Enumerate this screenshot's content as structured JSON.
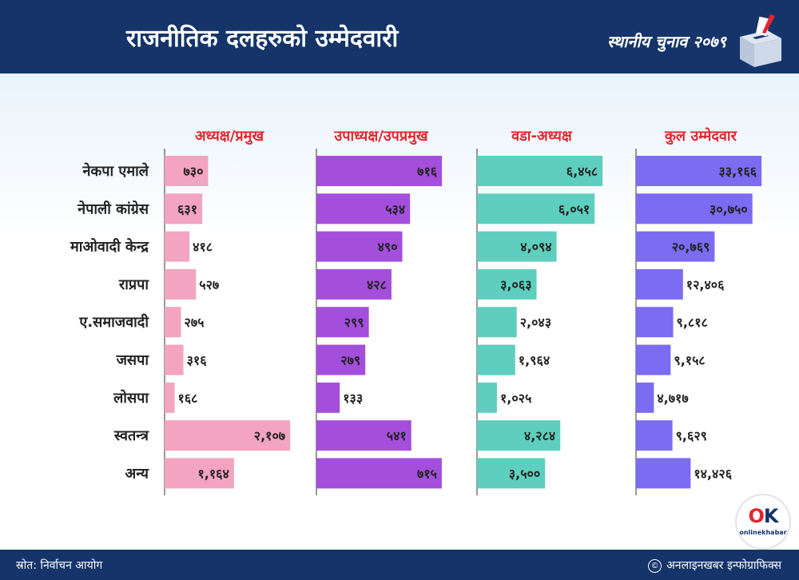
{
  "header": {
    "title": "राजनीतिक दलहरुको उम्मेदवारी",
    "brand": "स्थानीय चुनाव २०७९"
  },
  "footer": {
    "source": "स्रोत: निर्वाचन आयोग",
    "credit": "अनलाइनखबर इन्फोग्राफिक्स",
    "copyright_symbol": "©"
  },
  "logo": {
    "mark_o": "O",
    "mark_k": "K",
    "sub": "onlinekhabar"
  },
  "colors": {
    "header_bg": "#14346a",
    "chair": "#f3a4c0",
    "vice": "#a34fdc",
    "ward": "#5ecfbe",
    "total": "#7b6cf2",
    "heading": "#e3262e"
  },
  "chart_data": {
    "type": "bar",
    "orientation": "horizontal",
    "categories": [
      "नेकपा एमाले",
      "नेपाली कांग्रेस",
      "माओवादी केन्द्र",
      "राप्रपा",
      "ए.समाजवादी",
      "जसपा",
      "लोसपा",
      "स्वतन्त्र",
      "अन्य"
    ],
    "series": [
      {
        "name": "अध्यक्ष/प्रमुख",
        "color": "#f3a4c0",
        "values": [
          730,
          631,
          418,
          527,
          275,
          316,
          168,
          2107,
          1164
        ],
        "labels": [
          "७३०",
          "६३१",
          "४१८",
          "५२७",
          "२७५",
          "३१६",
          "१६८",
          "२,१०७",
          "१,१६४"
        ],
        "max": 2107
      },
      {
        "name": "उपाध्यक्ष/उपप्रमुख",
        "color": "#a34fdc",
        "values": [
          716,
          534,
          490,
          428,
          299,
          279,
          133,
          541,
          715
        ],
        "labels": [
          "७१६",
          "५३४",
          "४९०",
          "४२८",
          "२९९",
          "२७९",
          "१३३",
          "५४१",
          "७१५"
        ],
        "max": 716
      },
      {
        "name": "वडा-अध्यक्ष",
        "color": "#5ecfbe",
        "values": [
          6458,
          6051,
          4094,
          3063,
          2043,
          1964,
          1025,
          4284,
          3500
        ],
        "labels": [
          "६,४५८",
          "६,०५१",
          "४,०९४",
          "३,०६३",
          "२,०४३",
          "१,९६४",
          "१,०२५",
          "४,२८४",
          "३,५००"
        ],
        "max": 6458
      },
      {
        "name": "कुल उम्मेदवार",
        "color": "#7b6cf2",
        "values": [
          33166,
          30750,
          20769,
          12406,
          9818,
          9158,
          4717,
          9629,
          14426
        ],
        "labels": [
          "३३,१६६",
          "३०,७५०",
          "२०,७६९",
          "१२,४०६",
          "९,८१८",
          "९,१५८",
          "४,७१७",
          "९,६२९",
          "१४,४२६"
        ],
        "max": 33166
      }
    ]
  }
}
